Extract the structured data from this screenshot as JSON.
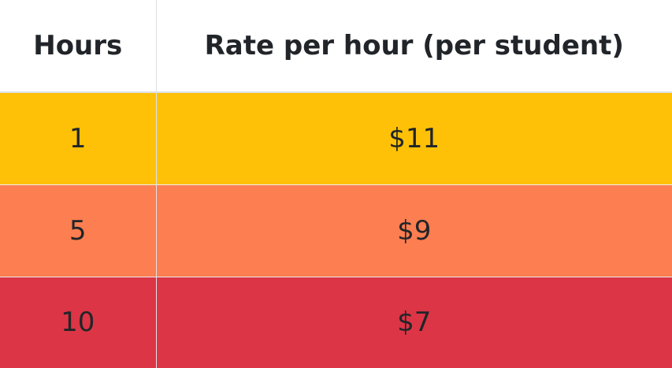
{
  "table": {
    "headers": {
      "hours": "Hours",
      "rate": "Rate per hour (per student)"
    },
    "rows": [
      {
        "hours": "1",
        "rate": "$11",
        "color": "#ffc107"
      },
      {
        "hours": "5",
        "rate": "$9",
        "color": "#fd7e50"
      },
      {
        "hours": "10",
        "rate": "$7",
        "color": "#dc3545"
      }
    ]
  }
}
